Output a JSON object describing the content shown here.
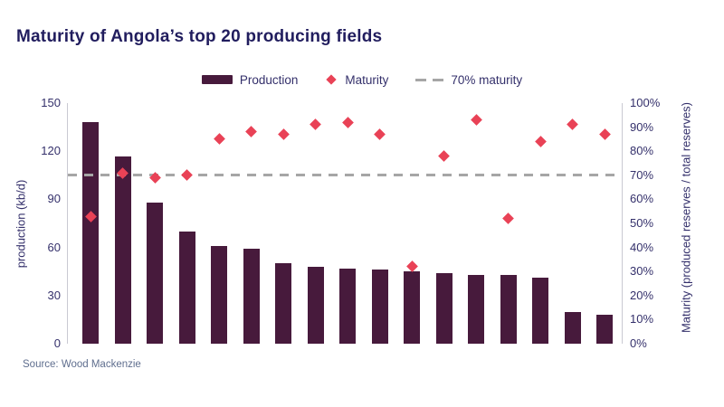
{
  "title": "Maturity of Angola’s top 20 producing fields",
  "source": "Source: Wood Mackenzie",
  "legend": {
    "production": "Production",
    "maturity": "Maturity",
    "threshold": "70% maturity"
  },
  "colors": {
    "bar": "#471a3c",
    "diamond": "#e94256",
    "reference_line": "#a6a6a6",
    "title_text": "#211d5e",
    "axis_text": "#34306b",
    "source_text": "#5f6e8e",
    "axis_line": "#c9c9d2",
    "background": "#ffffff"
  },
  "chart_data": {
    "type": "bar",
    "subtype": "bar + scatter + horizontal reference line, dual y-axis",
    "title": "Maturity of Angola’s top 20 producing fields",
    "xlabel": "",
    "x_tick_labels_shown": false,
    "fields_shown": 17,
    "ylabel_left": "production (kb/d)",
    "ylabel_right": "Maturity (produced reserves / total reserves)",
    "ylim_left": [
      0,
      150
    ],
    "yticks_left": [
      0,
      30,
      60,
      90,
      120,
      150
    ],
    "ylim_right": [
      0,
      100
    ],
    "yticks_right": [
      "0%",
      "10%",
      "20%",
      "30%",
      "40%",
      "50%",
      "60%",
      "70%",
      "80%",
      "90%",
      "100%"
    ],
    "reference_line": {
      "label": "70% maturity",
      "value_pct": 70,
      "style": "dashed",
      "color": "#a6a6a6"
    },
    "grid": false,
    "legend_position": "top",
    "series": [
      {
        "name": "Production",
        "type": "bar",
        "unit": "kb/d",
        "axis": "left",
        "values": [
          138,
          117,
          88,
          70,
          61,
          59,
          50,
          48,
          47,
          46,
          45,
          44,
          43,
          43,
          41,
          20,
          18
        ]
      },
      {
        "name": "Maturity",
        "type": "scatter",
        "marker": "diamond",
        "unit": "%",
        "axis": "right",
        "values": [
          53,
          71,
          69,
          70,
          85,
          88,
          87,
          91,
          92,
          87,
          32,
          78,
          93,
          52,
          84,
          91,
          87
        ]
      }
    ]
  }
}
